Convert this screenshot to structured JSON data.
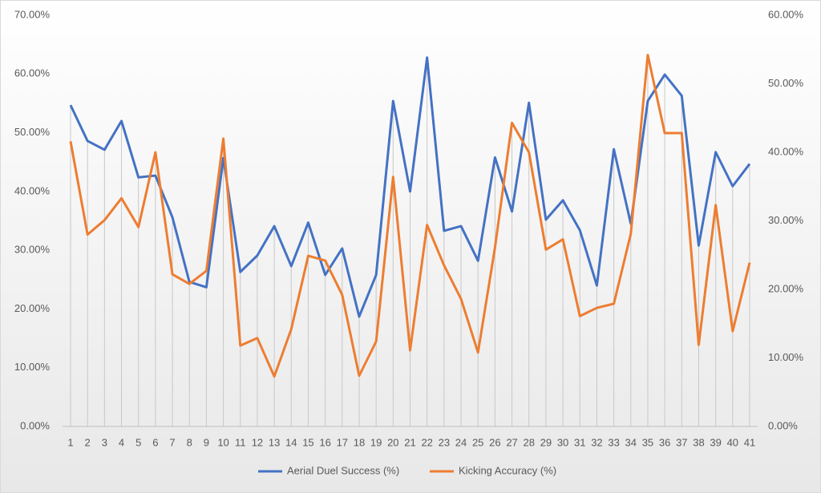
{
  "chart_data": {
    "type": "line",
    "categories": [
      1,
      2,
      3,
      4,
      5,
      6,
      7,
      8,
      9,
      10,
      11,
      12,
      13,
      14,
      15,
      16,
      17,
      18,
      19,
      20,
      21,
      22,
      23,
      24,
      25,
      26,
      27,
      28,
      29,
      30,
      31,
      32,
      33,
      34,
      35,
      36,
      37,
      38,
      39,
      40,
      41
    ],
    "series": [
      {
        "name": "Aerial Duel Success (%)",
        "color": "#4472c4",
        "values": [
          54.7,
          48.6,
          47.1,
          52.0,
          42.4,
          42.7,
          35.6,
          24.6,
          23.7,
          45.7,
          26.3,
          29.1,
          34.1,
          27.3,
          34.7,
          25.8,
          30.3,
          18.7,
          25.8,
          55.4,
          40.0,
          62.8,
          33.3,
          34.1,
          28.2,
          45.8,
          36.6,
          55.1,
          35.2,
          38.5,
          33.4,
          24.0,
          47.2,
          34.5,
          55.4,
          59.9,
          56.3,
          30.8,
          46.7,
          40.9,
          44.7
        ]
      },
      {
        "name": "Kicking Accuracy (%)",
        "color": "#ed7d31",
        "axis": "y2",
        "values": [
          41.6,
          28.0,
          30.1,
          33.3,
          29.1,
          40.0,
          22.2,
          20.8,
          22.7,
          42.0,
          11.8,
          12.9,
          7.3,
          14.2,
          24.9,
          24.2,
          19.2,
          7.4,
          12.4,
          36.4,
          11.1,
          29.4,
          23.5,
          18.6,
          10.8,
          26.1,
          44.3,
          40.0,
          25.8,
          27.3,
          16.1,
          17.3,
          17.9,
          28.1,
          54.2,
          42.8,
          42.8,
          11.9,
          32.3,
          13.9,
          23.9
        ]
      }
    ],
    "ylim": [
      0,
      70
    ],
    "yticks": [
      {
        "value": 0,
        "label": "0.00%"
      },
      {
        "value": 10,
        "label": "10.00%"
      },
      {
        "value": 20,
        "label": "20.00%"
      },
      {
        "value": 30,
        "label": "30.00%"
      },
      {
        "value": 40,
        "label": "40.00%"
      },
      {
        "value": 50,
        "label": "50.00%"
      },
      {
        "value": 60,
        "label": "60.00%"
      },
      {
        "value": 70,
        "label": "70.00%"
      }
    ],
    "y2lim": [
      0,
      60
    ],
    "y2ticks": [
      {
        "value": 0,
        "label": "0.00%"
      },
      {
        "value": 10,
        "label": "10.00%"
      },
      {
        "value": 20,
        "label": "20.00%"
      },
      {
        "value": 30,
        "label": "30.00%"
      },
      {
        "value": 40,
        "label": "40.00%"
      },
      {
        "value": 50,
        "label": "50.00%"
      },
      {
        "value": 60,
        "label": "60.00%"
      }
    ],
    "legend": "bottom"
  }
}
